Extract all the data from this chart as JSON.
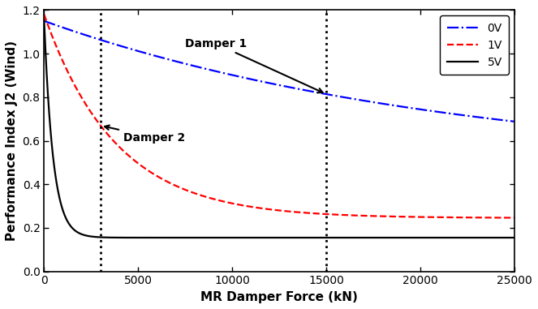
{
  "xlabel": "MR Damper Force (kN)",
  "ylabel": "Performance Index J2 (Wind)",
  "xlim": [
    0,
    25000
  ],
  "ylim": [
    0.0,
    1.2
  ],
  "yticks": [
    0.0,
    0.2,
    0.4,
    0.6,
    0.8,
    1.0,
    1.2
  ],
  "xticks": [
    0,
    5000,
    10000,
    15000,
    20000,
    25000
  ],
  "vline1": 3000,
  "vline2": 15000,
  "legend_labels": [
    "0V",
    "1V",
    "5V"
  ],
  "line_colors": [
    "#0000FF",
    "#FF0000",
    "#000000"
  ],
  "line_styles": [
    "-.",
    "--",
    "-"
  ],
  "background_color": "#FFFFFF",
  "curve0V": {
    "a": 0.47,
    "b": 0.68,
    "tau": 22000,
    "start": 1.15
  },
  "curve1V": {
    "a": 0.245,
    "b": 0.935,
    "tau": 3800,
    "start": 1.15
  },
  "curve5V": {
    "a": 0.155,
    "b": 1.0,
    "tau": 500,
    "start": 1.15
  }
}
